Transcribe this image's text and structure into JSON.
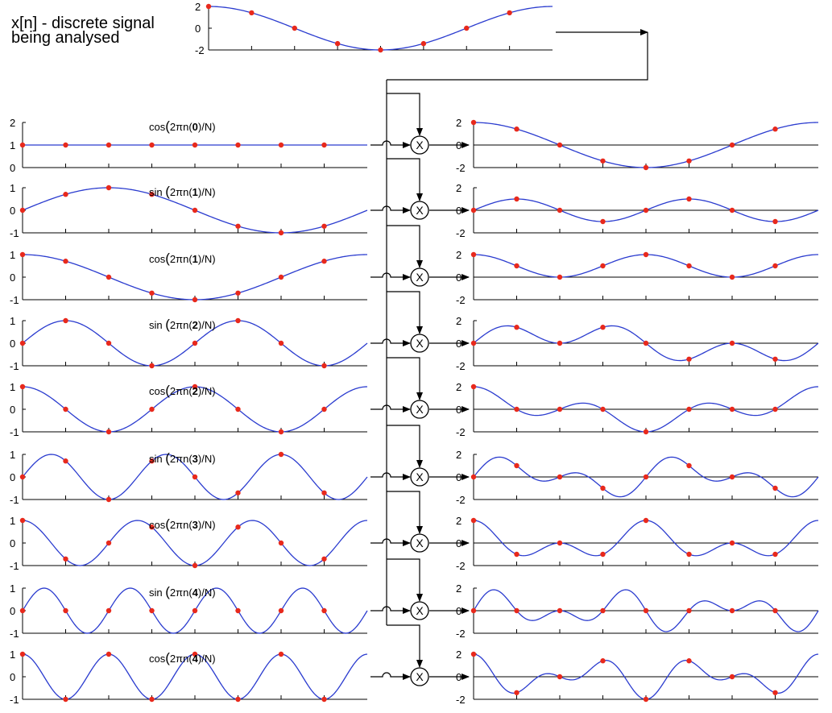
{
  "title": {
    "line1": "x[n] - discrete signal",
    "line2": "being analysed"
  },
  "multiplier_symbol": "X",
  "signal_plot": {
    "ticks": [
      "2",
      "0",
      "-2"
    ],
    "samples": [
      2,
      1.414,
      0,
      -1.414,
      -2,
      -1.414,
      0,
      1.414
    ]
  },
  "colors": {
    "curve": "#2b3ccf",
    "sample": "#e8291c",
    "axis": "#000000"
  },
  "N": 8,
  "basis_rows": [
    {
      "func": "cos",
      "k": 0,
      "ticks": [
        "2",
        "1",
        "0"
      ],
      "label": {
        "prefix": "cos",
        "open": "(",
        "pre": "2πn(",
        "k": "0",
        "post": ")/N)"
      },
      "product_ticks": [
        "2",
        "0",
        "-2"
      ]
    },
    {
      "func": "sin",
      "k": 1,
      "ticks": [
        "1",
        "0",
        "-1"
      ],
      "label": {
        "prefix": "sin ",
        "open": "(",
        "pre": "2πn(",
        "k": "1",
        "post": ")/N)"
      },
      "product_ticks": [
        "2",
        "0",
        "-2"
      ]
    },
    {
      "func": "cos",
      "k": 1,
      "ticks": [
        "1",
        "0",
        "-1"
      ],
      "label": {
        "prefix": "cos",
        "open": "(",
        "pre": "2πn(",
        "k": "1",
        "post": ")/N)"
      },
      "product_ticks": [
        "2",
        "0",
        "-2"
      ]
    },
    {
      "func": "sin",
      "k": 2,
      "ticks": [
        "1",
        "0",
        "-1"
      ],
      "label": {
        "prefix": "sin ",
        "open": "(",
        "pre": "2πn(",
        "k": "2",
        "post": ")/N)"
      },
      "product_ticks": [
        "2",
        "0",
        "-2"
      ]
    },
    {
      "func": "cos",
      "k": 2,
      "ticks": [
        "1",
        "0",
        "-1"
      ],
      "label": {
        "prefix": "cos",
        "open": "(",
        "pre": "2πn(",
        "k": "2",
        "post": ")/N)"
      },
      "product_ticks": [
        "2",
        "0",
        "-2"
      ]
    },
    {
      "func": "sin",
      "k": 3,
      "ticks": [
        "1",
        "0",
        "-1"
      ],
      "label": {
        "prefix": "sin ",
        "open": "(",
        "pre": "2πn(",
        "k": "3",
        "post": ")/N)"
      },
      "product_ticks": [
        "2",
        "0",
        "-2"
      ]
    },
    {
      "func": "cos",
      "k": 3,
      "ticks": [
        "1",
        "0",
        "-1"
      ],
      "label": {
        "prefix": "cos",
        "open": "(",
        "pre": "2πn(",
        "k": "3",
        "post": ")/N)"
      },
      "product_ticks": [
        "2",
        "0",
        "-2"
      ]
    },
    {
      "func": "sin",
      "k": 4,
      "ticks": [
        "1",
        "0",
        "-1"
      ],
      "label": {
        "prefix": "sin ",
        "open": "(",
        "pre": "2πn(",
        "k": "4",
        "post": ")/N)"
      },
      "product_ticks": [
        "2",
        "0",
        "-2"
      ]
    },
    {
      "func": "cos",
      "k": 4,
      "ticks": [
        "1",
        "0",
        "-1"
      ],
      "label": {
        "prefix": "cos",
        "open": "(",
        "pre": "2πn(",
        "k": "4",
        "post": ")/N)"
      },
      "product_ticks": [
        "2",
        "0",
        "-2"
      ]
    }
  ]
}
